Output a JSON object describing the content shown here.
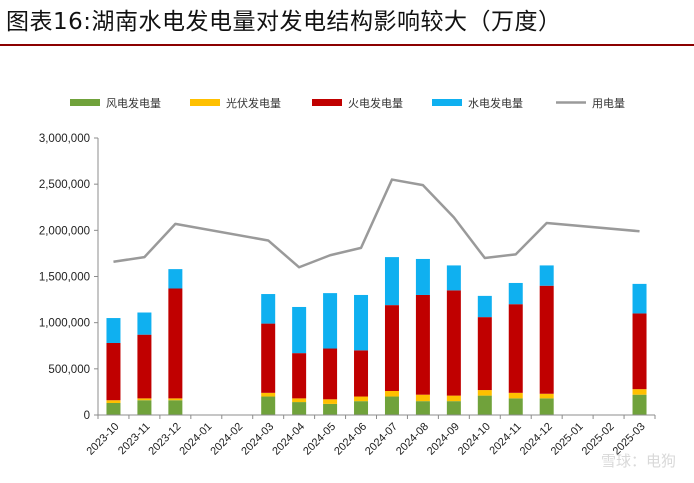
{
  "header": {
    "title": "图表16:湖南水电发电量对发电结构影响较大（万度）"
  },
  "watermark": "雪球：电狗",
  "colors": {
    "wind": "#70a23b",
    "solar": "#ffc000",
    "thermal": "#c00000",
    "hydro": "#0fb0f0",
    "consumption": "#9a9a9a",
    "rule": "#8b0000"
  },
  "chart_data": {
    "type": "bar",
    "title": "图表16:湖南水电发电量对发电结构影响较大（万度）",
    "stacked": true,
    "categories": [
      "2023-10",
      "2023-11",
      "2023-12",
      "2024-01",
      "2024-02",
      "2024-03",
      "2024-04",
      "2024-05",
      "2024-06",
      "2024-07",
      "2024-08",
      "2024-09",
      "2024-10",
      "2024-11",
      "2024-12",
      "2025-01",
      "2025-02",
      "2025-03"
    ],
    "series": [
      {
        "name": "风电发电量",
        "kind": "bar",
        "color": "#70a23b",
        "values": [
          130000,
          160000,
          160000,
          null,
          null,
          200000,
          140000,
          120000,
          150000,
          200000,
          150000,
          150000,
          210000,
          180000,
          180000,
          null,
          null,
          220000
        ]
      },
      {
        "name": "光伏发电量",
        "kind": "bar",
        "color": "#ffc000",
        "values": [
          30000,
          20000,
          20000,
          null,
          null,
          40000,
          40000,
          50000,
          50000,
          60000,
          70000,
          60000,
          60000,
          60000,
          50000,
          null,
          null,
          60000
        ]
      },
      {
        "name": "火电发电量",
        "kind": "bar",
        "color": "#c00000",
        "values": [
          620000,
          690000,
          1190000,
          null,
          null,
          750000,
          490000,
          550000,
          500000,
          930000,
          1080000,
          1140000,
          790000,
          960000,
          1170000,
          null,
          null,
          820000
        ]
      },
      {
        "name": "水电发电量",
        "kind": "bar",
        "color": "#0fb0f0",
        "values": [
          270000,
          240000,
          210000,
          null,
          null,
          320000,
          500000,
          600000,
          600000,
          520000,
          390000,
          270000,
          230000,
          230000,
          220000,
          null,
          null,
          320000
        ]
      },
      {
        "name": "用电量",
        "kind": "line",
        "color": "#9a9a9a",
        "values": [
          1660000,
          1710000,
          2070000,
          null,
          null,
          1890000,
          1600000,
          1730000,
          1810000,
          2550000,
          2490000,
          2140000,
          1700000,
          1740000,
          2080000,
          null,
          null,
          1990000
        ]
      }
    ],
    "ylim": [
      0,
      3000000
    ],
    "yticks": [
      "0",
      "500,000",
      "1,000,000",
      "1,500,000",
      "2,000,000",
      "2,500,000",
      "3,000,000"
    ],
    "legend_position": "top",
    "grid": false
  }
}
